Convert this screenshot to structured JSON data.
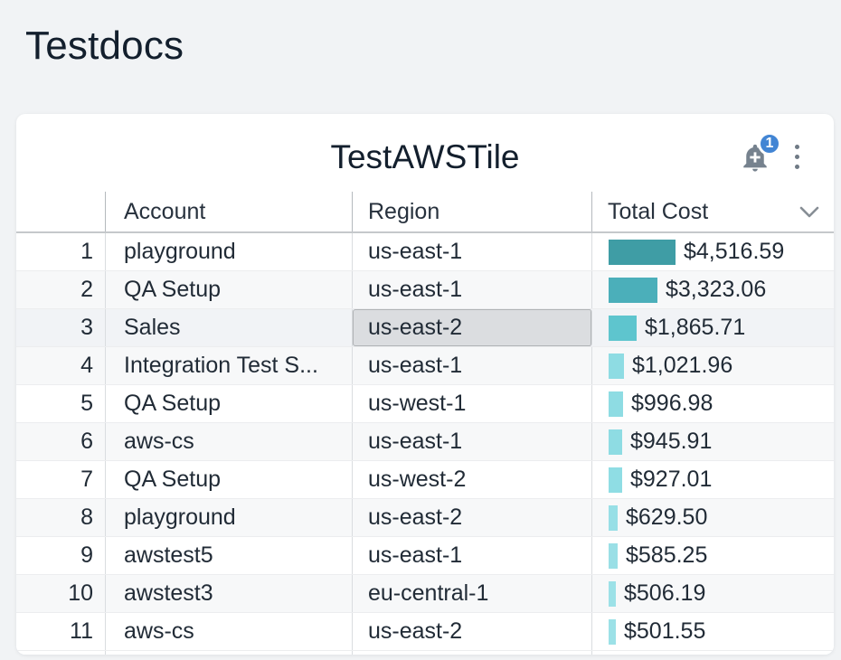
{
  "page": {
    "title": "Testdocs"
  },
  "tile": {
    "title": "TestAWSTile",
    "notification_badge": "1",
    "badge_color": "#4285d4",
    "bell_color": "#76828e"
  },
  "table": {
    "columns": [
      {
        "key": "account",
        "label": "Account"
      },
      {
        "key": "region",
        "label": "Region"
      },
      {
        "key": "total_cost",
        "label": "Total Cost"
      }
    ],
    "bar_max_value": 4516.59,
    "rows": [
      {
        "rank": "1",
        "account": "playground",
        "region": "us-east-1",
        "total_cost": "$4,516.59",
        "value": 4516.59,
        "bar_color": "#3f9da5"
      },
      {
        "rank": "2",
        "account": "QA Setup",
        "region": "us-east-1",
        "total_cost": "$3,323.06",
        "value": 3323.06,
        "bar_color": "#4bafba"
      },
      {
        "rank": "3",
        "account": "Sales",
        "region": "us-east-2",
        "total_cost": "$1,865.71",
        "value": 1865.71,
        "bar_color": "#5ec5ce"
      },
      {
        "rank": "4",
        "account": "Integration Test S...",
        "region": "us-east-1",
        "total_cost": "$1,021.96",
        "value": 1021.96,
        "bar_color": "#8edce3"
      },
      {
        "rank": "5",
        "account": "QA Setup",
        "region": "us-west-1",
        "total_cost": "$996.98",
        "value": 996.98,
        "bar_color": "#8edce3"
      },
      {
        "rank": "6",
        "account": "aws-cs",
        "region": "us-east-1",
        "total_cost": "$945.91",
        "value": 945.91,
        "bar_color": "#8edce3"
      },
      {
        "rank": "7",
        "account": "QA Setup",
        "region": "us-west-2",
        "total_cost": "$927.01",
        "value": 927.01,
        "bar_color": "#8fdde4"
      },
      {
        "rank": "8",
        "account": "playground",
        "region": "us-east-2",
        "total_cost": "$629.50",
        "value": 629.5,
        "bar_color": "#97dfe6"
      },
      {
        "rank": "9",
        "account": "awstest5",
        "region": "us-east-1",
        "total_cost": "$585.25",
        "value": 585.25,
        "bar_color": "#9adfe6"
      },
      {
        "rank": "10",
        "account": "awstest3",
        "region": "eu-central-1",
        "total_cost": "$506.19",
        "value": 506.19,
        "bar_color": "#9ce1e7"
      },
      {
        "rank": "11",
        "account": "aws-cs",
        "region": "us-east-2",
        "total_cost": "$501.55",
        "value": 501.55,
        "bar_color": "#9ce1e7"
      }
    ],
    "selected_cell": {
      "row_index": 2,
      "column": "region",
      "value": "us-east-2"
    },
    "partial_next_row": {
      "bar_color": "#9ce1e7"
    }
  }
}
